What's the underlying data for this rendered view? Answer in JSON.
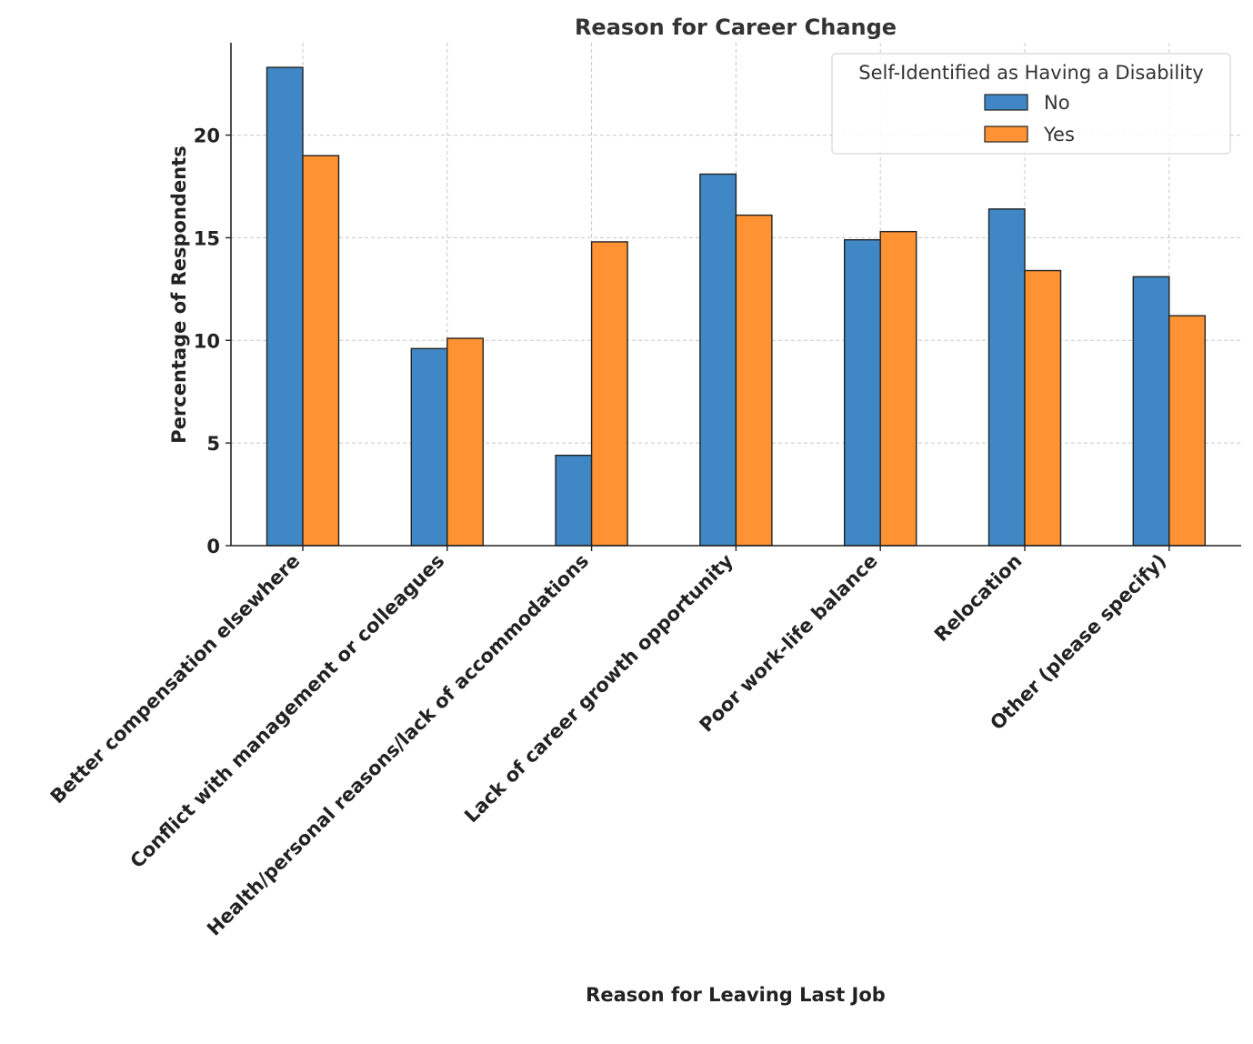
{
  "chart_data": {
    "type": "bar",
    "title": "Reason for Career Change",
    "xlabel": "Reason for Leaving Last Job",
    "ylabel": "Percentage of Respondents",
    "ylim": [
      0,
      24.5
    ],
    "yticks": [
      0,
      5,
      10,
      15,
      20
    ],
    "grid": true,
    "legend_title": "Self-Identified as Having a Disability",
    "legend_position": "top-right",
    "categories": [
      "Better compensation elsewhere",
      "Conflict with management or colleagues",
      "Health/personal reasons/lack of accommodations",
      "Lack of career growth opportunity",
      "Poor work-life balance",
      "Relocation",
      "Other (please specify)"
    ],
    "series": [
      {
        "name": "No",
        "color": "#3f88c5",
        "values": [
          23.3,
          9.6,
          4.4,
          18.1,
          14.9,
          16.4,
          13.1
        ]
      },
      {
        "name": "Yes",
        "color": "#ff9233",
        "values": [
          19.0,
          10.1,
          14.8,
          16.1,
          15.3,
          13.4,
          11.2
        ]
      }
    ]
  }
}
